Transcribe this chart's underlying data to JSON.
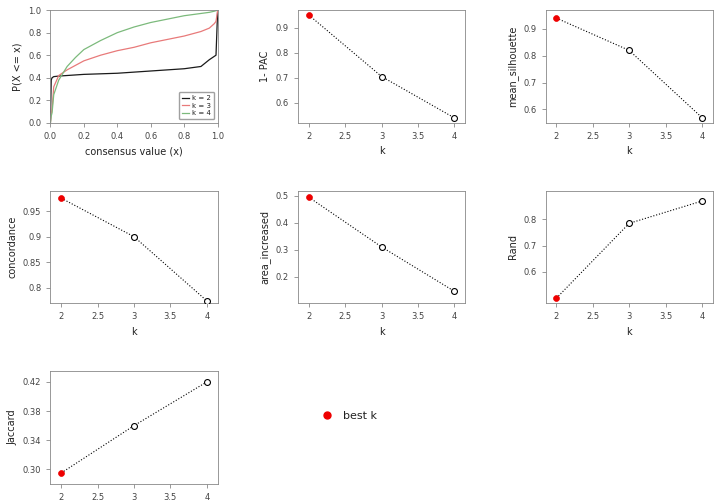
{
  "cdf": {
    "k2_x": [
      0.0,
      0.005,
      0.01,
      0.02,
      0.05,
      0.1,
      0.15,
      0.2,
      0.3,
      0.4,
      0.5,
      0.6,
      0.7,
      0.8,
      0.9,
      0.95,
      0.98,
      0.99,
      1.0
    ],
    "k2_y": [
      0.0,
      0.38,
      0.4,
      0.41,
      0.415,
      0.42,
      0.425,
      0.43,
      0.435,
      0.44,
      0.45,
      0.46,
      0.47,
      0.48,
      0.5,
      0.56,
      0.59,
      0.6,
      1.0
    ],
    "k3_x": [
      0.0,
      0.005,
      0.01,
      0.02,
      0.05,
      0.1,
      0.15,
      0.2,
      0.3,
      0.4,
      0.5,
      0.6,
      0.7,
      0.8,
      0.9,
      0.95,
      0.98,
      0.99,
      1.0
    ],
    "k3_y": [
      0.0,
      0.08,
      0.12,
      0.32,
      0.42,
      0.47,
      0.51,
      0.55,
      0.6,
      0.64,
      0.67,
      0.71,
      0.74,
      0.77,
      0.81,
      0.84,
      0.88,
      0.9,
      1.0
    ],
    "k4_x": [
      0.0,
      0.005,
      0.01,
      0.02,
      0.05,
      0.1,
      0.15,
      0.2,
      0.3,
      0.4,
      0.5,
      0.6,
      0.7,
      0.8,
      0.9,
      0.95,
      0.98,
      0.99,
      1.0
    ],
    "k4_y": [
      0.0,
      0.06,
      0.09,
      0.25,
      0.38,
      0.5,
      0.58,
      0.65,
      0.73,
      0.8,
      0.85,
      0.89,
      0.92,
      0.95,
      0.97,
      0.98,
      0.99,
      0.995,
      1.0
    ],
    "xlabel": "consensus value (x)",
    "ylabel": "P(X <= x)",
    "colors": [
      "#1a1a1a",
      "#e87a7a",
      "#7cba7c"
    ],
    "legend_labels": [
      "k = 2",
      "k = 3",
      "k = 4"
    ]
  },
  "pac": {
    "k": [
      2,
      3,
      4
    ],
    "values": [
      0.95,
      0.705,
      0.54
    ],
    "best_k": 2,
    "xlabel": "k",
    "ylabel": "1- PAC",
    "yticks": [
      0.6,
      0.7,
      0.8,
      0.9
    ],
    "ylim": [
      0.52,
      0.97
    ]
  },
  "silhouette": {
    "k": [
      2,
      3,
      4
    ],
    "values": [
      0.94,
      0.82,
      0.57
    ],
    "best_k": 2,
    "xlabel": "k",
    "ylabel": "mean_silhouette",
    "yticks": [
      0.6,
      0.7,
      0.8,
      0.9
    ],
    "ylim": [
      0.55,
      0.97
    ]
  },
  "concordance": {
    "k": [
      2,
      3,
      4
    ],
    "values": [
      0.975,
      0.9,
      0.775
    ],
    "best_k": 2,
    "xlabel": "k",
    "ylabel": "concordance",
    "yticks": [
      0.8,
      0.85,
      0.9,
      0.95
    ],
    "ylim": [
      0.77,
      0.99
    ]
  },
  "area_increased": {
    "k": [
      2,
      3,
      4
    ],
    "values": [
      0.495,
      0.31,
      0.145
    ],
    "best_k": 2,
    "xlabel": "k",
    "ylabel": "area_increased",
    "yticks": [
      0.2,
      0.3,
      0.4,
      0.5
    ],
    "ylim": [
      0.1,
      0.52
    ]
  },
  "rand": {
    "k": [
      2,
      3,
      4
    ],
    "values": [
      0.5,
      0.785,
      0.87
    ],
    "best_k": 2,
    "xlabel": "k",
    "ylabel": "Rand",
    "yticks": [
      0.6,
      0.7,
      0.8
    ],
    "ylim": [
      0.48,
      0.91
    ]
  },
  "jaccard": {
    "k": [
      2,
      3,
      4
    ],
    "values": [
      0.295,
      0.36,
      0.42
    ],
    "best_k": 2,
    "xlabel": "k",
    "ylabel": "Jaccard",
    "yticks": [
      0.3,
      0.34,
      0.38,
      0.42
    ],
    "ylim": [
      0.28,
      0.435
    ]
  },
  "bg_color": "#FFFFFF",
  "plot_bg": "#FFFFFF",
  "line_color": "#000000",
  "spine_color": "#888888",
  "best_k_color": "#EE0000",
  "open_circle_color": "#000000",
  "dot_line_style": ":"
}
